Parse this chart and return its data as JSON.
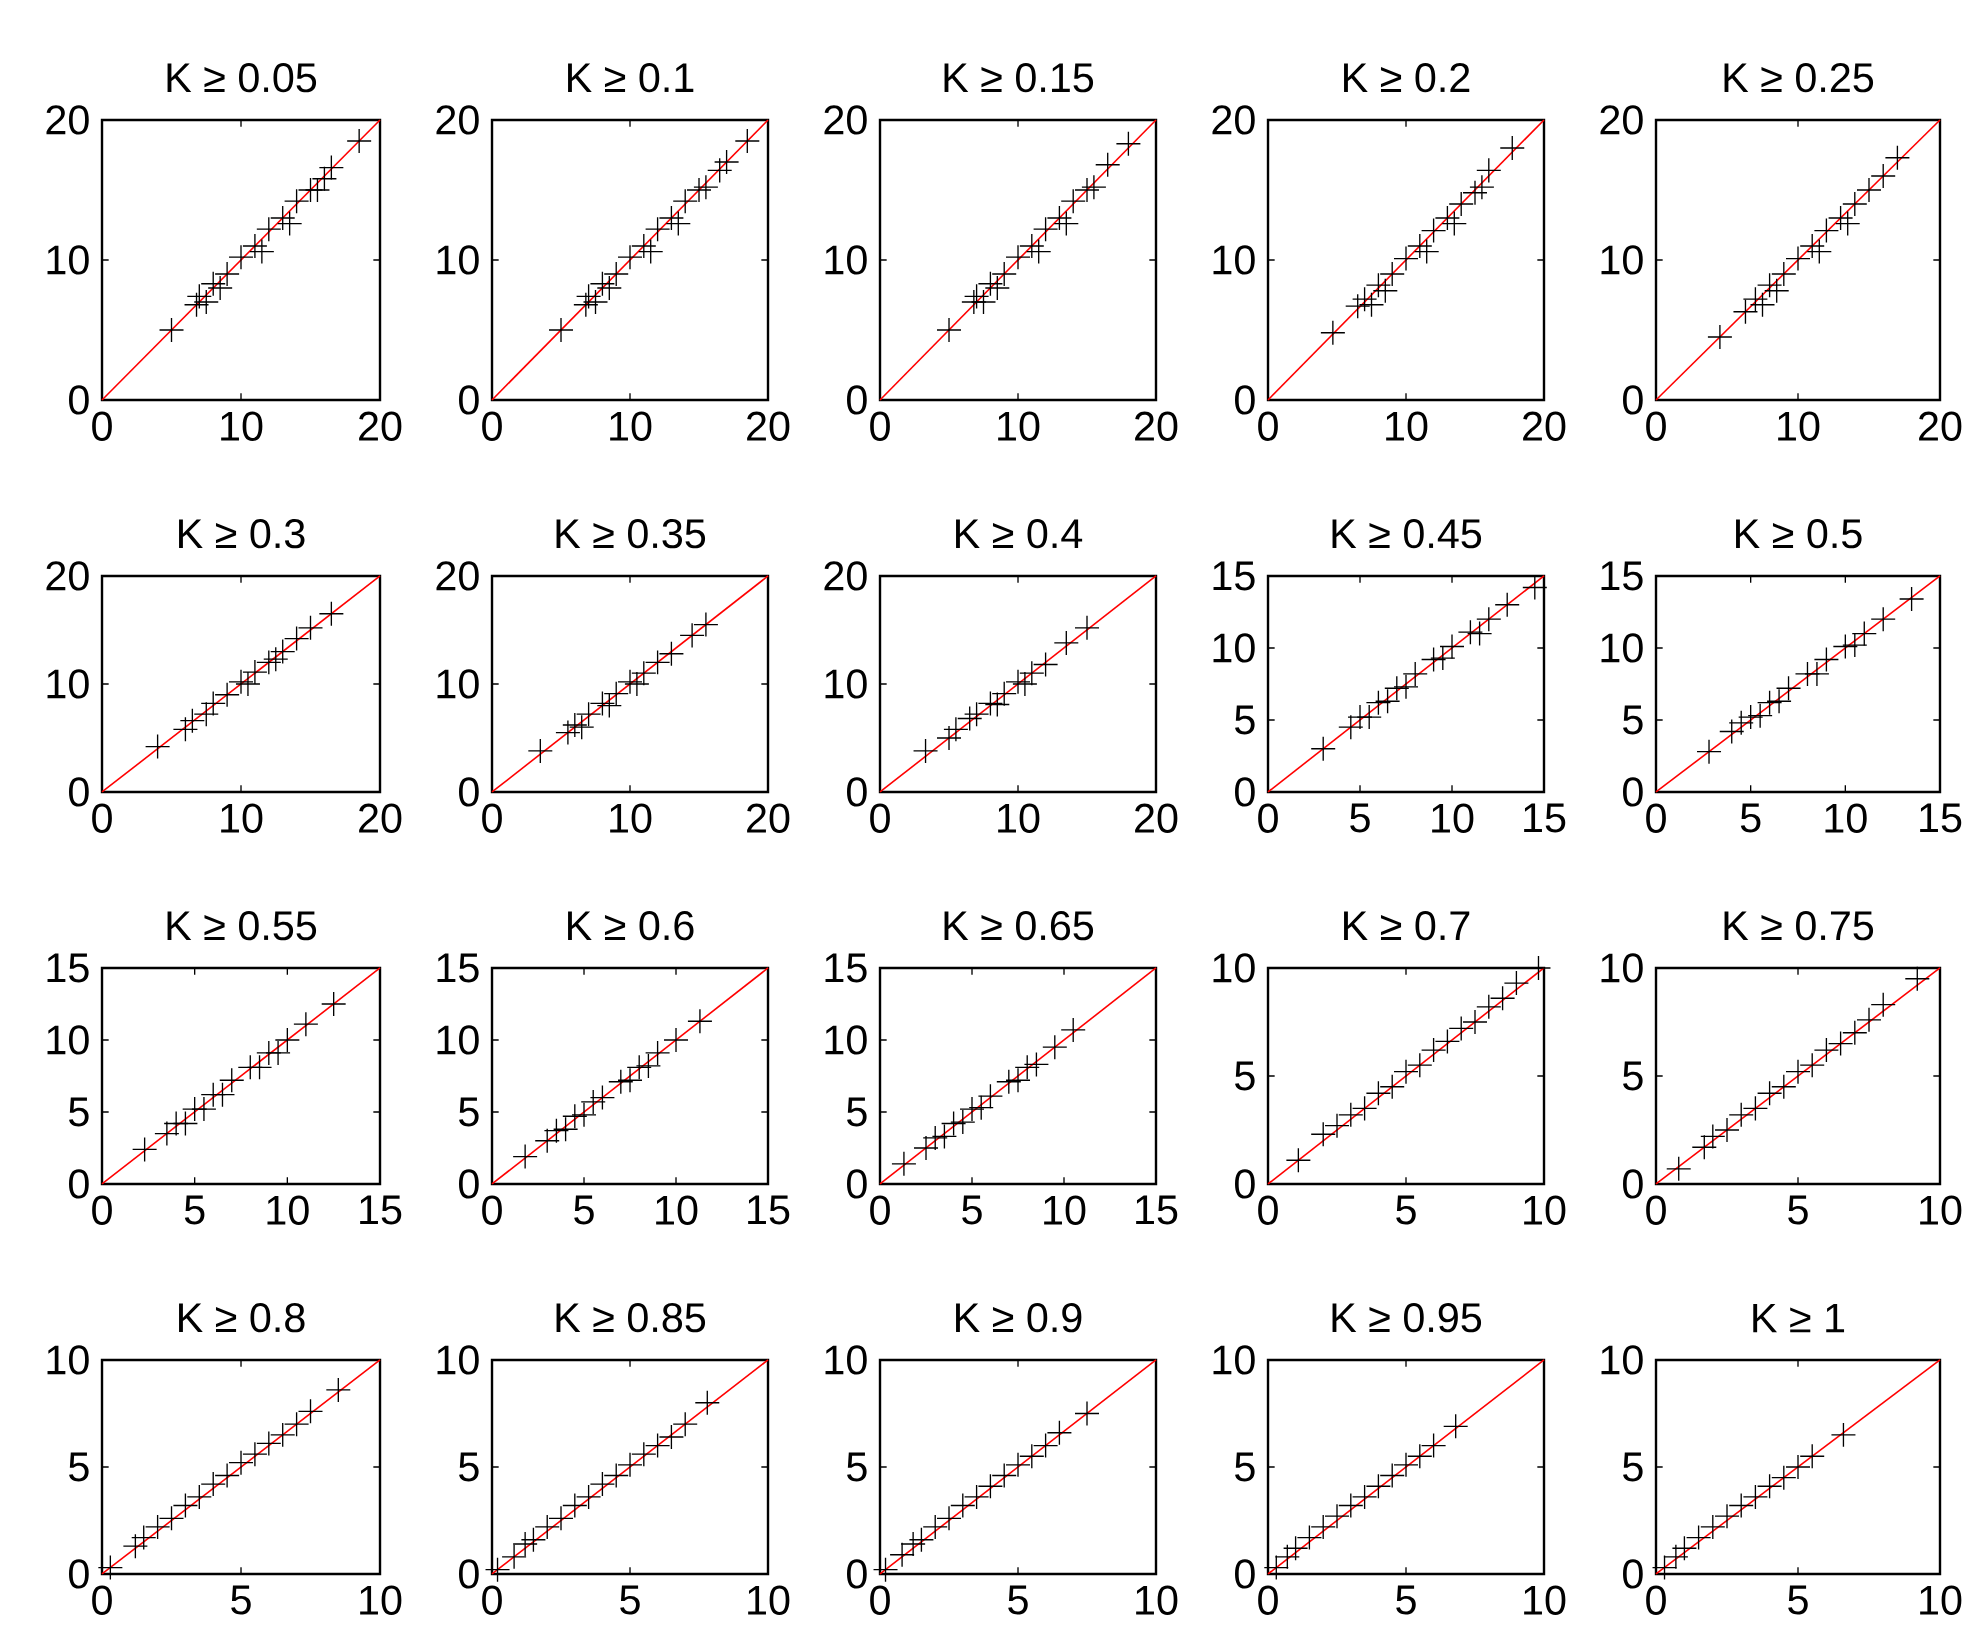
{
  "chart_data": [
    {
      "type": "scatter",
      "title": "K ≥ 0.05",
      "xlim": [
        0,
        20
      ],
      "ylim": [
        0,
        20
      ],
      "xticks": [
        0,
        10,
        20
      ],
      "yticks": [
        0,
        10,
        20
      ],
      "series": [
        {
          "marker": "cross",
          "color": "#000000",
          "x": [
            5,
            6.8,
            7,
            7.5,
            8,
            8.5,
            9,
            10,
            11,
            11.5,
            12,
            13,
            13.5,
            14,
            15,
            15.5,
            16,
            16.5,
            18.5
          ],
          "values": [
            5,
            6.8,
            7.4,
            7,
            8.3,
            8,
            9,
            10.2,
            11,
            10.6,
            12.2,
            13,
            12.6,
            14.2,
            15,
            15,
            15.8,
            16.6,
            18.5
          ]
        },
        {
          "type": "line",
          "marker": "none",
          "color": "#ff0000",
          "x": [
            0,
            20
          ],
          "values": [
            0,
            20
          ]
        }
      ]
    },
    {
      "type": "scatter",
      "title": "K ≥ 0.1",
      "xlim": [
        0,
        20
      ],
      "ylim": [
        0,
        20
      ],
      "xticks": [
        0,
        10,
        20
      ],
      "yticks": [
        0,
        10,
        20
      ],
      "series": [
        {
          "marker": "cross",
          "color": "#000000",
          "x": [
            5,
            6.8,
            7,
            7.5,
            8,
            8.5,
            9,
            10,
            11,
            11.5,
            12,
            13,
            13.5,
            14,
            15,
            15.5,
            16.5,
            17,
            18.5
          ],
          "values": [
            5,
            6.8,
            7.4,
            7,
            8.3,
            8,
            9,
            10.2,
            11,
            10.6,
            12.2,
            13,
            12.6,
            14.2,
            15,
            15.2,
            16.4,
            17,
            18.5
          ]
        },
        {
          "type": "line",
          "marker": "none",
          "color": "#ff0000",
          "x": [
            0,
            20
          ],
          "values": [
            0,
            20
          ]
        }
      ]
    },
    {
      "type": "scatter",
      "title": "K ≥ 0.15",
      "xlim": [
        0,
        20
      ],
      "ylim": [
        0,
        20
      ],
      "xticks": [
        0,
        10,
        20
      ],
      "yticks": [
        0,
        10,
        20
      ],
      "series": [
        {
          "marker": "cross",
          "color": "#000000",
          "x": [
            5,
            6.8,
            7,
            7.5,
            8,
            8.5,
            9,
            10,
            11,
            11.5,
            12,
            13,
            13.5,
            14,
            15,
            15.5,
            16.5,
            18
          ],
          "values": [
            5,
            7,
            7.4,
            7,
            8.3,
            8,
            9,
            10.2,
            11,
            10.6,
            12.2,
            13,
            12.6,
            14.2,
            15,
            15.2,
            16.8,
            18.3
          ]
        },
        {
          "type": "line",
          "marker": "none",
          "color": "#ff0000",
          "x": [
            0,
            20
          ],
          "values": [
            0,
            20
          ]
        }
      ]
    },
    {
      "type": "scatter",
      "title": "K ≥ 0.2",
      "xlim": [
        0,
        20
      ],
      "ylim": [
        0,
        20
      ],
      "xticks": [
        0,
        10,
        20
      ],
      "yticks": [
        0,
        10,
        20
      ],
      "series": [
        {
          "marker": "cross",
          "color": "#000000",
          "x": [
            4.7,
            6.5,
            7,
            7.5,
            8,
            8.5,
            9,
            10,
            11,
            11.5,
            12,
            13,
            13.5,
            14,
            15,
            15.5,
            16,
            17.7
          ],
          "values": [
            4.8,
            6.7,
            7.2,
            6.8,
            8.2,
            7.8,
            9,
            10.1,
            11,
            10.6,
            12.1,
            13,
            12.6,
            14,
            14.8,
            15.2,
            16.4,
            18
          ]
        },
        {
          "type": "line",
          "marker": "none",
          "color": "#ff0000",
          "x": [
            0,
            20
          ],
          "values": [
            0,
            20
          ]
        }
      ]
    },
    {
      "type": "scatter",
      "title": "K ≥ 0.25",
      "xlim": [
        0,
        20
      ],
      "ylim": [
        0,
        20
      ],
      "xticks": [
        0,
        10,
        20
      ],
      "yticks": [
        0,
        10,
        20
      ],
      "series": [
        {
          "marker": "cross",
          "color": "#000000",
          "x": [
            4.5,
            6.3,
            7,
            7.5,
            8,
            8.5,
            9,
            10,
            11,
            11.5,
            12,
            13,
            13.5,
            14,
            15,
            16,
            17
          ],
          "values": [
            4.5,
            6.3,
            7.2,
            6.8,
            8.2,
            7.8,
            9,
            10.1,
            11,
            10.6,
            12.1,
            13,
            12.6,
            14,
            15,
            16,
            17.3
          ]
        },
        {
          "type": "line",
          "marker": "none",
          "color": "#ff0000",
          "x": [
            0,
            20
          ],
          "values": [
            0,
            20
          ]
        }
      ]
    },
    {
      "type": "scatter",
      "title": "K ≥ 0.3",
      "xlim": [
        0,
        20
      ],
      "ylim": [
        0,
        20
      ],
      "xticks": [
        0,
        10,
        20
      ],
      "yticks": [
        0,
        10,
        20
      ],
      "series": [
        {
          "marker": "cross",
          "color": "#000000",
          "x": [
            4,
            6,
            6.5,
            7.5,
            8,
            9,
            10,
            10.5,
            11,
            12,
            12.5,
            13,
            14,
            15,
            16.5
          ],
          "values": [
            4.2,
            5.8,
            6.6,
            7.2,
            8.2,
            9,
            10.2,
            10,
            11.1,
            12,
            12.3,
            13,
            14.2,
            15.2,
            16.5
          ]
        },
        {
          "type": "line",
          "marker": "none",
          "color": "#ff0000",
          "x": [
            0,
            20
          ],
          "values": [
            0,
            20
          ]
        }
      ]
    },
    {
      "type": "scatter",
      "title": "K ≥ 0.35",
      "xlim": [
        0,
        20
      ],
      "ylim": [
        0,
        20
      ],
      "xticks": [
        0,
        10,
        20
      ],
      "yticks": [
        0,
        10,
        20
      ],
      "series": [
        {
          "marker": "cross",
          "color": "#000000",
          "x": [
            3.5,
            5.5,
            6,
            6.5,
            7,
            8,
            8.5,
            9,
            10,
            10.5,
            11,
            12,
            13,
            14.5,
            15.5
          ],
          "values": [
            3.8,
            5.5,
            6.2,
            6,
            7.2,
            8.2,
            8,
            9.1,
            10.2,
            10,
            11,
            12,
            12.8,
            14.5,
            15.5
          ]
        },
        {
          "type": "line",
          "marker": "none",
          "color": "#ff0000",
          "x": [
            0,
            20
          ],
          "values": [
            0,
            20
          ]
        }
      ]
    },
    {
      "type": "scatter",
      "title": "K ≥ 0.4",
      "xlim": [
        0,
        20
      ],
      "ylim": [
        0,
        20
      ],
      "xticks": [
        0,
        10,
        20
      ],
      "yticks": [
        0,
        10,
        20
      ],
      "series": [
        {
          "marker": "cross",
          "color": "#000000",
          "x": [
            3.3,
            5,
            5.5,
            6.5,
            7,
            8,
            8.5,
            9,
            10,
            10.5,
            11,
            12,
            13.5,
            15
          ],
          "values": [
            3.8,
            5,
            5.8,
            6.8,
            7.2,
            8.2,
            8.1,
            9.1,
            10.2,
            10,
            11,
            11.8,
            13.8,
            15.2
          ]
        },
        {
          "type": "line",
          "marker": "none",
          "color": "#ff0000",
          "x": [
            0,
            20
          ],
          "values": [
            0,
            20
          ]
        }
      ]
    },
    {
      "type": "scatter",
      "title": "K ≥ 0.45",
      "xlim": [
        0,
        15
      ],
      "ylim": [
        0,
        15
      ],
      "xticks": [
        0,
        5,
        10,
        15
      ],
      "yticks": [
        0,
        5,
        10,
        15
      ],
      "series": [
        {
          "marker": "cross",
          "color": "#000000",
          "x": [
            3,
            4.5,
            5,
            5.5,
            6,
            6.5,
            7,
            7.5,
            8,
            9,
            9.5,
            10,
            11,
            11.5,
            12,
            13,
            14.5
          ],
          "values": [
            3,
            4.5,
            5.2,
            5.2,
            6.2,
            6.3,
            7.2,
            7.3,
            8.2,
            9.2,
            9.3,
            10.1,
            11.1,
            11,
            12,
            13,
            14.2
          ]
        },
        {
          "type": "line",
          "marker": "none",
          "color": "#ff0000",
          "x": [
            0,
            15
          ],
          "values": [
            0,
            15
          ]
        }
      ]
    },
    {
      "type": "scatter",
      "title": "K ≥ 0.5",
      "xlim": [
        0,
        15
      ],
      "ylim": [
        0,
        15
      ],
      "xticks": [
        0,
        5,
        10,
        15
      ],
      "yticks": [
        0,
        5,
        10,
        15
      ],
      "series": [
        {
          "marker": "cross",
          "color": "#000000",
          "x": [
            2.8,
            4,
            4.5,
            5,
            5.5,
            6,
            6.5,
            7,
            8,
            8.5,
            9,
            10,
            10.5,
            11,
            12,
            13.5
          ],
          "values": [
            2.8,
            4.2,
            4.8,
            5.2,
            5.3,
            6.2,
            6.3,
            7.2,
            8.2,
            8.2,
            9.2,
            10.1,
            10.2,
            11,
            12,
            13.4
          ]
        },
        {
          "type": "line",
          "marker": "none",
          "color": "#ff0000",
          "x": [
            0,
            15
          ],
          "values": [
            0,
            15
          ]
        }
      ]
    },
    {
      "type": "scatter",
      "title": "K ≥ 0.55",
      "xlim": [
        0,
        15
      ],
      "ylim": [
        0,
        15
      ],
      "xticks": [
        0,
        5,
        10,
        15
      ],
      "yticks": [
        0,
        5,
        10,
        15
      ],
      "series": [
        {
          "marker": "cross",
          "color": "#000000",
          "x": [
            2.3,
            3.5,
            4,
            4.5,
            5,
            5.5,
            6,
            6.5,
            7,
            8,
            8.5,
            9,
            9.5,
            10,
            11,
            12.5
          ],
          "values": [
            2.4,
            3.5,
            4.2,
            4.2,
            5.2,
            5.2,
            6.2,
            6.2,
            7.2,
            8.1,
            8.1,
            9.1,
            9.1,
            10,
            11.1,
            12.5
          ]
        },
        {
          "type": "line",
          "marker": "none",
          "color": "#ff0000",
          "x": [
            0,
            15
          ],
          "values": [
            0,
            15
          ]
        }
      ]
    },
    {
      "type": "scatter",
      "title": "K ≥ 0.6",
      "xlim": [
        0,
        15
      ],
      "ylim": [
        0,
        15
      ],
      "xticks": [
        0,
        5,
        10,
        15
      ],
      "yticks": [
        0,
        5,
        10,
        15
      ],
      "series": [
        {
          "marker": "cross",
          "color": "#000000",
          "x": [
            1.8,
            3,
            3.5,
            4,
            4.5,
            5,
            5.5,
            6,
            7,
            7.5,
            8,
            8.5,
            9,
            10,
            11.3
          ],
          "values": [
            1.9,
            3,
            3.7,
            3.8,
            4.7,
            4.8,
            5.7,
            6,
            7.1,
            7.2,
            8.1,
            8.2,
            9.1,
            10,
            11.3
          ]
        },
        {
          "type": "line",
          "marker": "none",
          "color": "#ff0000",
          "x": [
            0,
            15
          ],
          "values": [
            0,
            15
          ]
        }
      ]
    },
    {
      "type": "scatter",
      "title": "K ≥ 0.65",
      "xlim": [
        0,
        15
      ],
      "ylim": [
        0,
        15
      ],
      "xticks": [
        0,
        5,
        10,
        15
      ],
      "yticks": [
        0,
        5,
        10,
        15
      ],
      "series": [
        {
          "marker": "cross",
          "color": "#000000",
          "x": [
            1.3,
            2.5,
            3,
            3.5,
            4,
            4.5,
            5,
            5.5,
            6,
            7,
            7.5,
            8,
            8.5,
            9.5,
            10.5
          ],
          "values": [
            1.4,
            2.5,
            3.2,
            3.3,
            4.2,
            4.3,
            5.2,
            5.3,
            6.1,
            7.1,
            7.2,
            8.1,
            8.3,
            9.5,
            10.7
          ]
        },
        {
          "type": "line",
          "marker": "none",
          "color": "#ff0000",
          "x": [
            0,
            15
          ],
          "values": [
            0,
            15
          ]
        }
      ]
    },
    {
      "type": "scatter",
      "title": "K ≥ 0.7",
      "xlim": [
        0,
        10
      ],
      "ylim": [
        0,
        10
      ],
      "xticks": [
        0,
        5,
        10
      ],
      "yticks": [
        0,
        5,
        10
      ],
      "series": [
        {
          "marker": "cross",
          "color": "#000000",
          "x": [
            1.1,
            2,
            2.5,
            3,
            3.5,
            4,
            4.5,
            5,
            5.5,
            6,
            6.5,
            7,
            7.5,
            8,
            8.5,
            9,
            9.8
          ],
          "values": [
            1.1,
            2.3,
            2.7,
            3.2,
            3.5,
            4.2,
            4.5,
            5.2,
            5.5,
            6.2,
            6.6,
            7.2,
            7.5,
            8.2,
            8.6,
            9.3,
            10
          ]
        },
        {
          "type": "line",
          "marker": "none",
          "color": "#ff0000",
          "x": [
            0,
            10
          ],
          "values": [
            0,
            10
          ]
        }
      ]
    },
    {
      "type": "scatter",
      "title": "K ≥ 0.75",
      "xlim": [
        0,
        10
      ],
      "ylim": [
        0,
        10
      ],
      "xticks": [
        0,
        5,
        10
      ],
      "yticks": [
        0,
        5,
        10
      ],
      "series": [
        {
          "marker": "cross",
          "color": "#000000",
          "x": [
            0.8,
            1.7,
            2,
            2.5,
            3,
            3.5,
            4,
            4.5,
            5,
            5.5,
            6,
            6.5,
            7,
            7.5,
            8,
            9.2
          ],
          "values": [
            0.7,
            1.7,
            2.2,
            2.5,
            3.2,
            3.5,
            4.2,
            4.5,
            5.2,
            5.5,
            6.2,
            6.5,
            7,
            7.6,
            8.3,
            9.5
          ]
        },
        {
          "type": "line",
          "marker": "none",
          "color": "#ff0000",
          "x": [
            0,
            10
          ],
          "values": [
            0,
            10
          ]
        }
      ]
    },
    {
      "type": "scatter",
      "title": "K ≥ 0.8",
      "xlim": [
        0,
        10
      ],
      "ylim": [
        0,
        10
      ],
      "xticks": [
        0,
        5,
        10
      ],
      "yticks": [
        0,
        5,
        10
      ],
      "series": [
        {
          "marker": "cross",
          "color": "#000000",
          "x": [
            0.3,
            1.2,
            1.5,
            2,
            2.5,
            3,
            3.5,
            4,
            4.5,
            5,
            5.5,
            6,
            6.5,
            7,
            7.5,
            8.5
          ],
          "values": [
            0.3,
            1.3,
            1.7,
            2.2,
            2.6,
            3.2,
            3.6,
            4.2,
            4.6,
            5.2,
            5.6,
            6.1,
            6.5,
            7,
            7.6,
            8.6
          ]
        },
        {
          "type": "line",
          "marker": "none",
          "color": "#ff0000",
          "x": [
            0,
            10
          ],
          "values": [
            0,
            10
          ]
        }
      ]
    },
    {
      "type": "scatter",
      "title": "K ≥ 0.85",
      "xlim": [
        0,
        10
      ],
      "ylim": [
        0,
        10
      ],
      "xticks": [
        0,
        5,
        10
      ],
      "yticks": [
        0,
        5,
        10
      ],
      "series": [
        {
          "marker": "cross",
          "color": "#000000",
          "x": [
            0.2,
            0.8,
            1.2,
            1.5,
            2,
            2.5,
            3,
            3.5,
            4,
            4.5,
            5,
            5.5,
            6,
            6.5,
            7,
            7.8
          ],
          "values": [
            0.2,
            0.8,
            1.4,
            1.6,
            2.2,
            2.6,
            3.2,
            3.6,
            4.2,
            4.6,
            5.1,
            5.6,
            6,
            6.4,
            7,
            8
          ]
        },
        {
          "type": "line",
          "marker": "none",
          "color": "#ff0000",
          "x": [
            0,
            10
          ],
          "values": [
            0,
            10
          ]
        }
      ]
    },
    {
      "type": "scatter",
      "title": "K ≥ 0.9",
      "xlim": [
        0,
        10
      ],
      "ylim": [
        0,
        10
      ],
      "xticks": [
        0,
        5,
        10
      ],
      "yticks": [
        0,
        5,
        10
      ],
      "series": [
        {
          "marker": "cross",
          "color": "#000000",
          "x": [
            0.2,
            0.8,
            1.2,
            1.5,
            2,
            2.5,
            3,
            3.5,
            4,
            4.5,
            5,
            5.5,
            6,
            6.5,
            7.5
          ],
          "values": [
            0.2,
            0.9,
            1.4,
            1.6,
            2.2,
            2.6,
            3.2,
            3.6,
            4.1,
            4.6,
            5.1,
            5.5,
            6,
            6.6,
            7.5
          ]
        },
        {
          "type": "line",
          "marker": "none",
          "color": "#ff0000",
          "x": [
            0,
            10
          ],
          "values": [
            0,
            10
          ]
        }
      ]
    },
    {
      "type": "scatter",
      "title": "K ≥ 0.95",
      "xlim": [
        0,
        10
      ],
      "ylim": [
        0,
        10
      ],
      "xticks": [
        0,
        5,
        10
      ],
      "yticks": [
        0,
        5,
        10
      ],
      "series": [
        {
          "marker": "cross",
          "color": "#000000",
          "x": [
            0.3,
            0.7,
            1,
            1.5,
            2,
            2.5,
            3,
            3.5,
            4,
            4.5,
            5,
            5.5,
            6,
            6.8
          ],
          "values": [
            0.3,
            0.8,
            1.2,
            1.7,
            2.2,
            2.7,
            3.2,
            3.6,
            4.1,
            4.6,
            5.1,
            5.5,
            6,
            6.9
          ]
        },
        {
          "type": "line",
          "marker": "none",
          "color": "#ff0000",
          "x": [
            0,
            10
          ],
          "values": [
            0,
            10
          ]
        }
      ]
    },
    {
      "type": "scatter",
      "title": "K ≥ 1",
      "xlim": [
        0,
        10
      ],
      "ylim": [
        0,
        10
      ],
      "xticks": [
        0,
        5,
        10
      ],
      "yticks": [
        0,
        5,
        10
      ],
      "series": [
        {
          "marker": "cross",
          "color": "#000000",
          "x": [
            0.3,
            0.7,
            1,
            1.5,
            2,
            2.5,
            3,
            3.5,
            4,
            4.5,
            5,
            5.5,
            6.6
          ],
          "values": [
            0.3,
            0.8,
            1.2,
            1.7,
            2.2,
            2.7,
            3.2,
            3.6,
            4.1,
            4.5,
            5,
            5.5,
            6.5
          ]
        },
        {
          "type": "line",
          "marker": "none",
          "color": "#ff0000",
          "x": [
            0,
            10
          ],
          "values": [
            0,
            10
          ]
        }
      ]
    }
  ]
}
